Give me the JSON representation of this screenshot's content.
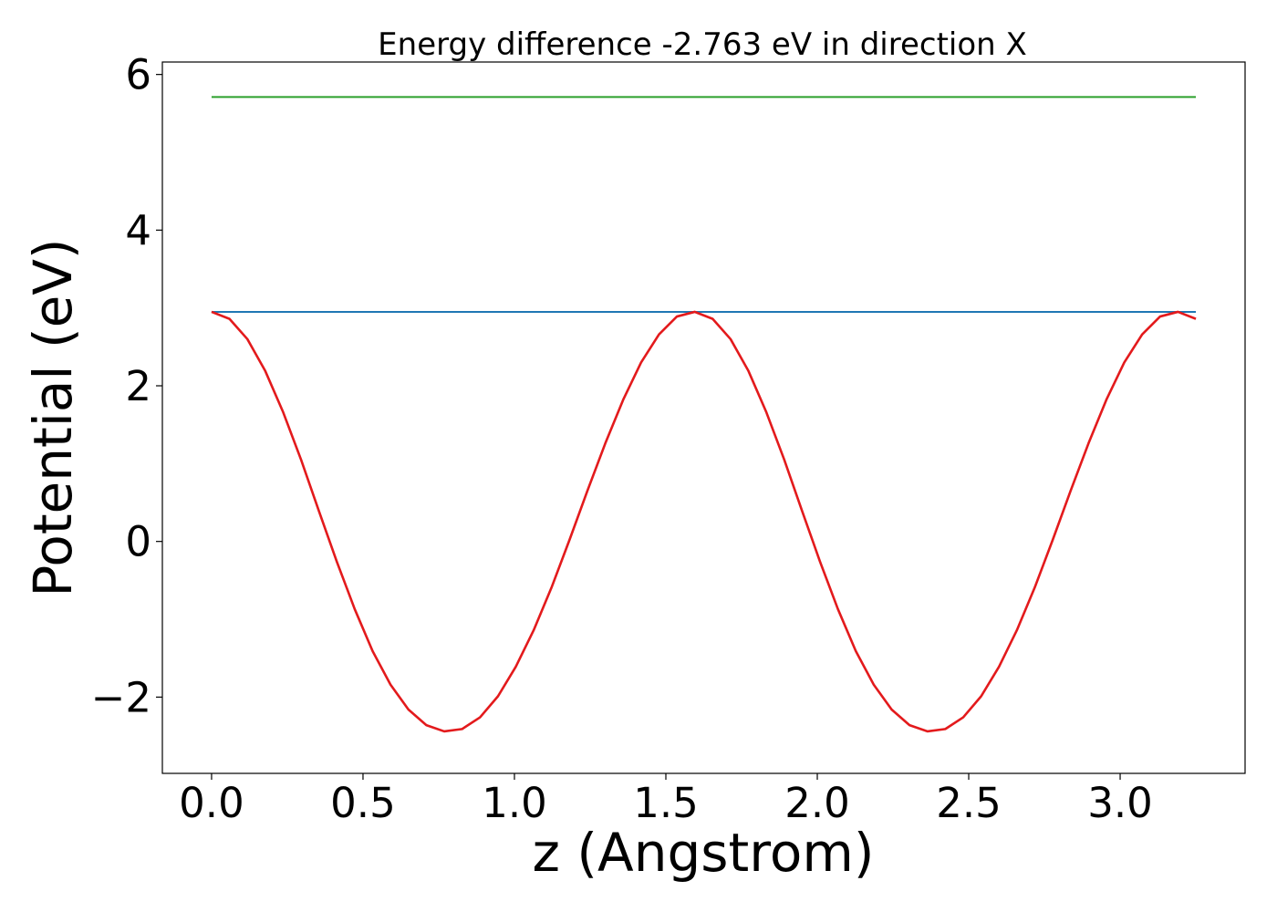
{
  "chart_data": {
    "type": "line",
    "title": "Energy difference -2.763 eV in direction X",
    "xlabel": "z (Angstrom)",
    "ylabel": "Potential (eV)",
    "xlim": [
      -0.1625,
      3.4125
    ],
    "ylim": [
      -2.98,
      6.16
    ],
    "x_ticks": [
      0.0,
      0.5,
      1.0,
      1.5,
      2.0,
      2.5,
      3.0
    ],
    "x_tick_labels": [
      "0.0",
      "0.5",
      "1.0",
      "1.5",
      "2.0",
      "2.5",
      "3.0"
    ],
    "y_ticks": [
      -2,
      0,
      2,
      4,
      6
    ],
    "y_tick_labels": [
      "−2",
      "0",
      "2",
      "4",
      "6"
    ],
    "grid": false,
    "legend": "none",
    "series": [
      {
        "color": "#2ca02c",
        "x": [
          0.0,
          3.25
        ],
        "y": [
          5.71,
          5.71
        ]
      },
      {
        "color": "#1f77b4",
        "x": [
          0.0,
          3.25
        ],
        "y": [
          2.95,
          2.95
        ]
      },
      {
        "color": "#e31a1c",
        "x": [
          0.0,
          0.0591,
          0.1182,
          0.1773,
          0.2364,
          0.2955,
          0.3545,
          0.4136,
          0.4727,
          0.5318,
          0.5909,
          0.65,
          0.7091,
          0.7682,
          0.8273,
          0.8864,
          0.9455,
          1.0045,
          1.0636,
          1.1227,
          1.1818,
          1.2409,
          1.3,
          1.3591,
          1.4182,
          1.4773,
          1.5364,
          1.5955,
          1.6545,
          1.7136,
          1.7727,
          1.8318,
          1.8909,
          1.95,
          2.0091,
          2.0682,
          2.1273,
          2.1864,
          2.2455,
          2.3045,
          2.3636,
          2.4227,
          2.4818,
          2.5409,
          2.6,
          2.6591,
          2.7182,
          2.7773,
          2.8364,
          2.8955,
          2.9545,
          3.0136,
          3.0727,
          3.1318,
          3.1909,
          3.25
        ],
        "y": [
          2.95,
          2.86,
          2.6,
          2.19,
          1.66,
          1.05,
          0.39,
          -0.26,
          -0.87,
          -1.41,
          -1.84,
          -2.16,
          -2.36,
          -2.44,
          -2.41,
          -2.26,
          -1.99,
          -1.61,
          -1.14,
          -0.59,
          0.02,
          0.65,
          1.26,
          1.82,
          2.3,
          2.66,
          2.89,
          2.95,
          2.86,
          2.6,
          2.19,
          1.66,
          1.05,
          0.39,
          -0.26,
          -0.87,
          -1.41,
          -1.84,
          -2.16,
          -2.36,
          -2.44,
          -2.41,
          -2.26,
          -1.99,
          -1.61,
          -1.14,
          -0.59,
          0.02,
          0.65,
          1.26,
          1.82,
          2.3,
          2.66,
          2.89,
          2.95,
          2.86
        ]
      }
    ]
  }
}
